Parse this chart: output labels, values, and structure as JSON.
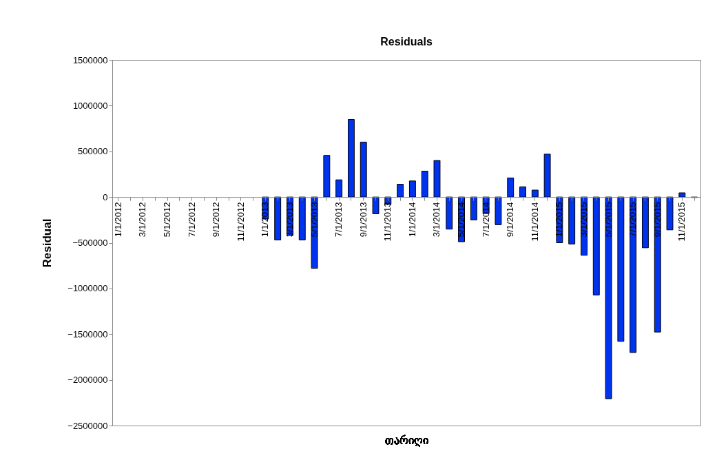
{
  "chart_data": {
    "type": "bar",
    "title": "Residuals",
    "xlabel": "თარიღი",
    "ylabel": "Residual",
    "categories": [
      "1/1/2012",
      null,
      "3/1/2012",
      null,
      "5/1/2012",
      null,
      "7/1/2012",
      null,
      "9/1/2012",
      null,
      "11/1/2012",
      null,
      "1/1/2013",
      null,
      "3/1/2013",
      null,
      "5/1/2013",
      null,
      "7/1/2013",
      null,
      "9/1/2013",
      null,
      "11/1/2013",
      null,
      "1/1/2014",
      null,
      "3/1/2014",
      null,
      "5/1/2014",
      null,
      "7/1/2014",
      null,
      "9/1/2014",
      null,
      "11/1/2014",
      null,
      "1/1/2015",
      null,
      "3/1/2015",
      null,
      "5/1/2015",
      null,
      "7/1/2015",
      null,
      "9/1/2015",
      null,
      "11/1/2015",
      null
    ],
    "values": [
      null,
      null,
      null,
      null,
      null,
      null,
      null,
      null,
      null,
      null,
      null,
      null,
      -240000,
      -470000,
      -420000,
      -470000,
      -780000,
      455000,
      188000,
      848000,
      601000,
      -183000,
      -81000,
      140000,
      176000,
      283000,
      400000,
      -351000,
      -489000,
      -250000,
      -180000,
      -303000,
      209000,
      112000,
      76000,
      469000,
      -500000,
      -514000,
      -637000,
      -1072000,
      -2206000,
      -1579000,
      -1701000,
      -555000,
      -1477000,
      -359000,
      46000,
      -5000
    ],
    "color": "#0033ee",
    "ylim": [
      -2500000,
      1500000
    ],
    "yticks": [
      -2500000,
      -2000000,
      -1500000,
      -1000000,
      -500000,
      0,
      500000,
      1000000,
      1500000
    ],
    "grid": false
  }
}
